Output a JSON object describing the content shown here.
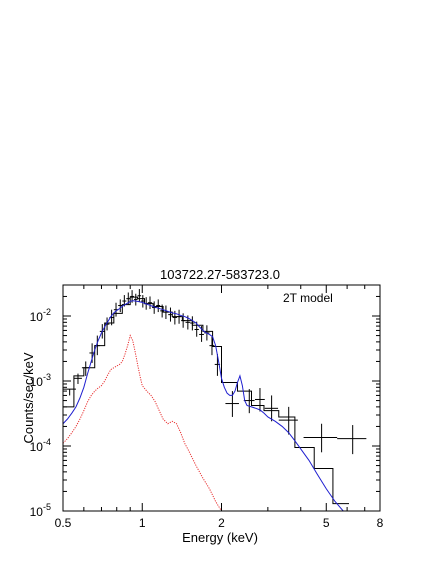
{
  "chart_data": {
    "type": "line",
    "title": "103722.27-583723.0",
    "xlabel": "Energy (keV)",
    "ylabel": "Counts/sec/keV",
    "xscale": "log",
    "yscale": "log",
    "xlim": [
      0.5,
      8
    ],
    "ylim": [
      1e-05,
      0.03
    ],
    "grid": false,
    "annotation": "2T model",
    "x_ticks": [
      {
        "value": 0.5,
        "label": "0.5"
      },
      {
        "value": 1,
        "label": "1"
      },
      {
        "value": 2,
        "label": "2"
      },
      {
        "value": 5,
        "label": "5"
      },
      {
        "value": 8,
        "label": "8"
      }
    ],
    "y_ticks": [
      {
        "value": 1e-05,
        "label_base": "10",
        "label_exp": "-5"
      },
      {
        "value": 0.0001,
        "label_base": "10",
        "label_exp": "-4"
      },
      {
        "value": 0.001,
        "label_base": "10",
        "label_exp": "-3"
      },
      {
        "value": 0.01,
        "label_base": "10",
        "label_exp": "-2"
      }
    ],
    "series": [
      {
        "kind": "errorbars",
        "color": "#000000",
        "points": [
          {
            "x": 0.53,
            "xerr": 0.03,
            "y": 0.00075,
            "yerr": [
              0.00075,
              0.0006
            ]
          },
          {
            "x": 0.57,
            "xerr": 0.02,
            "y": 0.0011,
            "yerr": [
              0.0013,
              0.0009
            ]
          },
          {
            "x": 0.61,
            "xerr": 0.02,
            "y": 0.0016,
            "yerr": [
              0.002,
              0.0012
            ]
          },
          {
            "x": 0.645,
            "xerr": 0.015,
            "y": 0.0027,
            "yerr": [
              0.0038,
              0.0019
            ]
          },
          {
            "x": 0.675,
            "xerr": 0.015,
            "y": 0.0035,
            "yerr": [
              0.005,
              0.0025
            ]
          },
          {
            "x": 0.705,
            "xerr": 0.015,
            "y": 0.0058,
            "yerr": [
              0.0075,
              0.0045
            ]
          },
          {
            "x": 0.735,
            "xerr": 0.015,
            "y": 0.0075,
            "yerr": [
              0.0095,
              0.006
            ]
          },
          {
            "x": 0.765,
            "xerr": 0.015,
            "y": 0.0095,
            "yerr": [
              0.0125,
              0.0072
            ]
          },
          {
            "x": 0.795,
            "xerr": 0.015,
            "y": 0.0125,
            "yerr": [
              0.016,
              0.0098
            ]
          },
          {
            "x": 0.825,
            "xerr": 0.015,
            "y": 0.0145,
            "yerr": [
              0.018,
              0.0115
            ]
          },
          {
            "x": 0.855,
            "xerr": 0.015,
            "y": 0.017,
            "yerr": [
              0.021,
              0.014
            ]
          },
          {
            "x": 0.885,
            "xerr": 0.015,
            "y": 0.0185,
            "yerr": [
              0.023,
              0.015
            ]
          },
          {
            "x": 0.915,
            "xerr": 0.015,
            "y": 0.02,
            "yerr": [
              0.025,
              0.016
            ]
          },
          {
            "x": 0.945,
            "xerr": 0.015,
            "y": 0.018,
            "yerr": [
              0.022,
              0.0145
            ]
          },
          {
            "x": 0.975,
            "xerr": 0.015,
            "y": 0.0205,
            "yerr": [
              0.026,
              0.0165
            ]
          },
          {
            "x": 1.005,
            "xerr": 0.015,
            "y": 0.017,
            "yerr": [
              0.021,
              0.0135
            ]
          },
          {
            "x": 1.035,
            "xerr": 0.015,
            "y": 0.0155,
            "yerr": [
              0.0195,
              0.0125
            ]
          },
          {
            "x": 1.07,
            "xerr": 0.02,
            "y": 0.016,
            "yerr": [
              0.02,
              0.0128
            ]
          },
          {
            "x": 1.11,
            "xerr": 0.02,
            "y": 0.0135,
            "yerr": [
              0.0168,
              0.0108
            ]
          },
          {
            "x": 1.15,
            "xerr": 0.02,
            "y": 0.0145,
            "yerr": [
              0.018,
              0.0115
            ]
          },
          {
            "x": 1.19,
            "xerr": 0.02,
            "y": 0.012,
            "yerr": [
              0.015,
              0.0095
            ]
          },
          {
            "x": 1.23,
            "xerr": 0.02,
            "y": 0.0115,
            "yerr": [
              0.0145,
              0.009
            ]
          },
          {
            "x": 1.28,
            "xerr": 0.025,
            "y": 0.0105,
            "yerr": [
              0.0135,
              0.0082
            ]
          },
          {
            "x": 1.33,
            "xerr": 0.025,
            "y": 0.0095,
            "yerr": [
              0.012,
              0.0074
            ]
          },
          {
            "x": 1.38,
            "xerr": 0.025,
            "y": 0.0098,
            "yerr": [
              0.0125,
              0.0076
            ]
          },
          {
            "x": 1.43,
            "xerr": 0.025,
            "y": 0.0085,
            "yerr": [
              0.011,
              0.0066
            ]
          },
          {
            "x": 1.49,
            "xerr": 0.03,
            "y": 0.008,
            "yerr": [
              0.0102,
              0.0062
            ]
          },
          {
            "x": 1.55,
            "xerr": 0.03,
            "y": 0.0078,
            "yerr": [
              0.0099,
              0.006
            ]
          },
          {
            "x": 1.61,
            "xerr": 0.03,
            "y": 0.0062,
            "yerr": [
              0.0082,
              0.0048
            ]
          },
          {
            "x": 1.68,
            "xerr": 0.035,
            "y": 0.0052,
            "yerr": [
              0.007,
              0.004
            ]
          },
          {
            "x": 1.76,
            "xerr": 0.04,
            "y": 0.0055,
            "yerr": [
              0.0072,
              0.0042
            ]
          },
          {
            "x": 1.84,
            "xerr": 0.04,
            "y": 0.0035,
            "yerr": [
              0.0048,
              0.0025
            ]
          },
          {
            "x": 1.93,
            "xerr": 0.045,
            "y": 0.0018,
            "yerr": [
              0.0026,
              0.0012
            ]
          },
          {
            "x": 2.2,
            "xerr": 0.13,
            "y": 0.00045,
            "yerr": [
              0.0007,
              0.00028
            ]
          },
          {
            "x": 2.55,
            "xerr": 0.12,
            "y": 0.0005,
            "yerr": [
              0.00075,
              0.00032
            ]
          },
          {
            "x": 2.8,
            "xerr": 0.12,
            "y": 0.00052,
            "yerr": [
              0.00078,
              0.00034
            ]
          },
          {
            "x": 3.1,
            "xerr": 0.18,
            "y": 0.00038,
            "yerr": [
              0.0006,
              0.00024
            ]
          },
          {
            "x": 3.6,
            "xerr": 0.3,
            "y": 0.00025,
            "yerr": [
              0.0004,
              0.00015
            ]
          },
          {
            "x": 4.8,
            "xerr": 0.7,
            "y": 0.000135,
            "yerr": [
              0.00022,
              8e-05
            ]
          },
          {
            "x": 6.3,
            "xerr": 0.8,
            "y": 0.00013,
            "yerr": [
              0.00021,
              7.5e-05
            ]
          }
        ]
      },
      {
        "kind": "step",
        "color": "#000000",
        "edges": [
          0.5,
          0.55,
          0.6,
          0.66,
          0.72,
          0.78,
          0.84,
          0.9,
          0.96,
          1.02,
          1.1,
          1.2,
          1.3,
          1.42,
          1.55,
          1.7,
          1.85,
          2.0,
          2.3,
          2.6,
          2.9,
          3.3,
          3.8,
          4.5,
          5.3,
          6.1
        ],
        "values": [
          0.0004,
          0.0012,
          0.0016,
          0.0035,
          0.0078,
          0.011,
          0.015,
          0.0195,
          0.0185,
          0.0155,
          0.014,
          0.0115,
          0.0098,
          0.0085,
          0.0072,
          0.0058,
          0.0034,
          0.00095,
          0.0007,
          0.00042,
          0.00035,
          0.00028,
          9.5e-05,
          4.5e-05,
          1.3e-05
        ]
      },
      {
        "kind": "line",
        "color": "#1f1fd0",
        "x": [
          0.5,
          0.52,
          0.54,
          0.56,
          0.58,
          0.6,
          0.62,
          0.64,
          0.66,
          0.68,
          0.7,
          0.72,
          0.74,
          0.76,
          0.78,
          0.8,
          0.82,
          0.84,
          0.86,
          0.88,
          0.9,
          0.92,
          0.94,
          0.96,
          0.98,
          1.0,
          1.03,
          1.06,
          1.1,
          1.15,
          1.2,
          1.25,
          1.3,
          1.35,
          1.4,
          1.45,
          1.5,
          1.55,
          1.6,
          1.65,
          1.7,
          1.75,
          1.8,
          1.85,
          1.9,
          1.95,
          2.0,
          2.05,
          2.1,
          2.15,
          2.2,
          2.25,
          2.3,
          2.35,
          2.4,
          2.45,
          2.5,
          2.6,
          2.7,
          2.8,
          2.9,
          3.0,
          3.2,
          3.4,
          3.6,
          3.8,
          4.0,
          4.3,
          4.6,
          5.0,
          5.4,
          5.8,
          6.0
        ],
        "y": [
          0.00022,
          0.00026,
          0.00032,
          0.0004,
          0.00055,
          0.0008,
          0.0013,
          0.002,
          0.003,
          0.0042,
          0.0055,
          0.0068,
          0.0082,
          0.0098,
          0.0112,
          0.0122,
          0.013,
          0.0142,
          0.015,
          0.0158,
          0.0168,
          0.0172,
          0.017,
          0.0168,
          0.0165,
          0.0162,
          0.0155,
          0.0148,
          0.014,
          0.0132,
          0.0125,
          0.0118,
          0.0112,
          0.0108,
          0.0102,
          0.0098,
          0.0092,
          0.0085,
          0.0078,
          0.0068,
          0.006,
          0.0055,
          0.0052,
          0.0048,
          0.0035,
          0.002,
          0.0011,
          0.0008,
          0.00065,
          0.0006,
          0.0006,
          0.0007,
          0.00095,
          0.0012,
          0.00085,
          0.0005,
          0.00042,
          0.0004,
          0.00038,
          0.00036,
          0.00032,
          0.00028,
          0.00024,
          0.0002,
          0.00016,
          0.00012,
          9e-05,
          6e-05,
          3.8e-05,
          2.2e-05,
          1.4e-05,
          1e-05,
          9e-06
        ]
      },
      {
        "kind": "line",
        "color": "#e83030",
        "dashed": true,
        "x": [
          0.5,
          0.52,
          0.54,
          0.56,
          0.58,
          0.6,
          0.62,
          0.64,
          0.66,
          0.68,
          0.7,
          0.72,
          0.74,
          0.76,
          0.78,
          0.8,
          0.82,
          0.84,
          0.86,
          0.88,
          0.9,
          0.92,
          0.94,
          0.96,
          0.98,
          1.0,
          1.04,
          1.08,
          1.12,
          1.16,
          1.2,
          1.25,
          1.3,
          1.35,
          1.4,
          1.45,
          1.5,
          1.6,
          1.7,
          1.8,
          1.9,
          2.0
        ],
        "y": [
          0.00011,
          0.00013,
          0.00016,
          0.0002,
          0.00026,
          0.00035,
          0.00048,
          0.0006,
          0.0007,
          0.00078,
          0.00085,
          0.001,
          0.00125,
          0.0015,
          0.0016,
          0.0017,
          0.0018,
          0.002,
          0.0026,
          0.0035,
          0.005,
          0.0042,
          0.0028,
          0.0018,
          0.0012,
          0.00085,
          0.0007,
          0.0006,
          0.00048,
          0.00035,
          0.00026,
          0.00022,
          0.00024,
          0.00022,
          0.00016,
          0.00011,
          8.5e-05,
          5e-05,
          3.2e-05,
          2.2e-05,
          1.4e-05,
          1e-05
        ]
      }
    ]
  }
}
